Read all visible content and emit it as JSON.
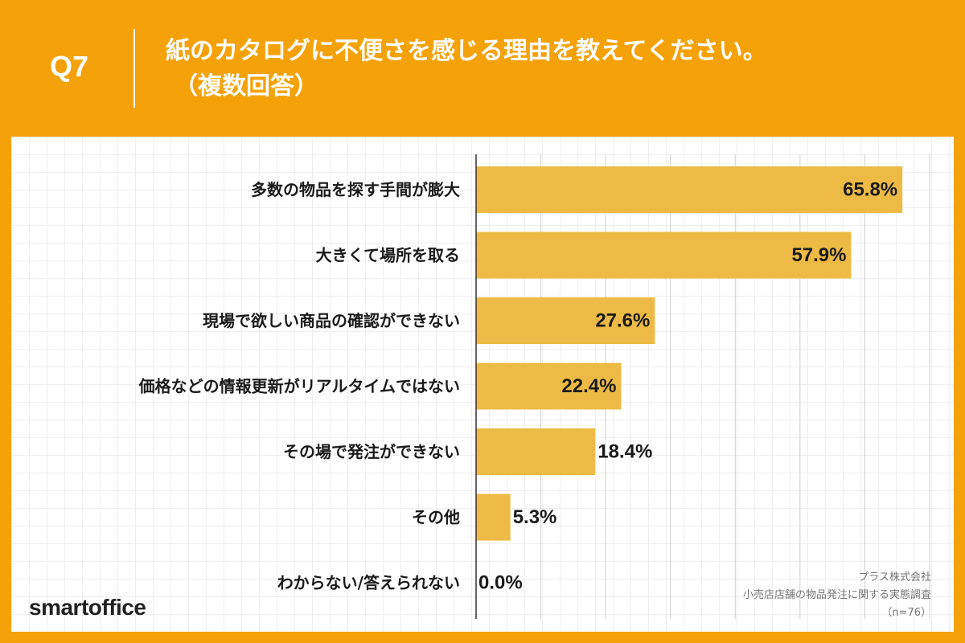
{
  "header": {
    "question_number": "Q7",
    "title": "紙のカタログに不便さを感じる理由を教えてください。",
    "subtitle": "（複数回答）"
  },
  "colors": {
    "background": "#F5A20A",
    "bar": "#EDBB45",
    "text": "#1a1a1a",
    "gridline": "#d0d0d0"
  },
  "chart_data": {
    "type": "bar",
    "orientation": "horizontal",
    "categories": [
      "多数の物品を探す手間が膨大",
      "大きくて場所を取る",
      "現場で欲しい商品の確認ができない",
      "価格などの情報更新がリアルタイムではない",
      "その場で発注ができない",
      "その他",
      "わからない/答えられない"
    ],
    "values": [
      65.8,
      57.9,
      27.6,
      22.4,
      18.4,
      5.3,
      0.0
    ],
    "value_labels": [
      "65.8%",
      "57.9%",
      "27.6%",
      "22.4%",
      "18.4%",
      "5.3%",
      "0.0%"
    ],
    "xlim": [
      0,
      70
    ],
    "grid": true
  },
  "footer": {
    "brand": "smartoffice",
    "source_company": "プラス株式会社",
    "source_survey": "小売店店舗の物品発注に関する実態調査",
    "sample_size": "（n=76）"
  }
}
